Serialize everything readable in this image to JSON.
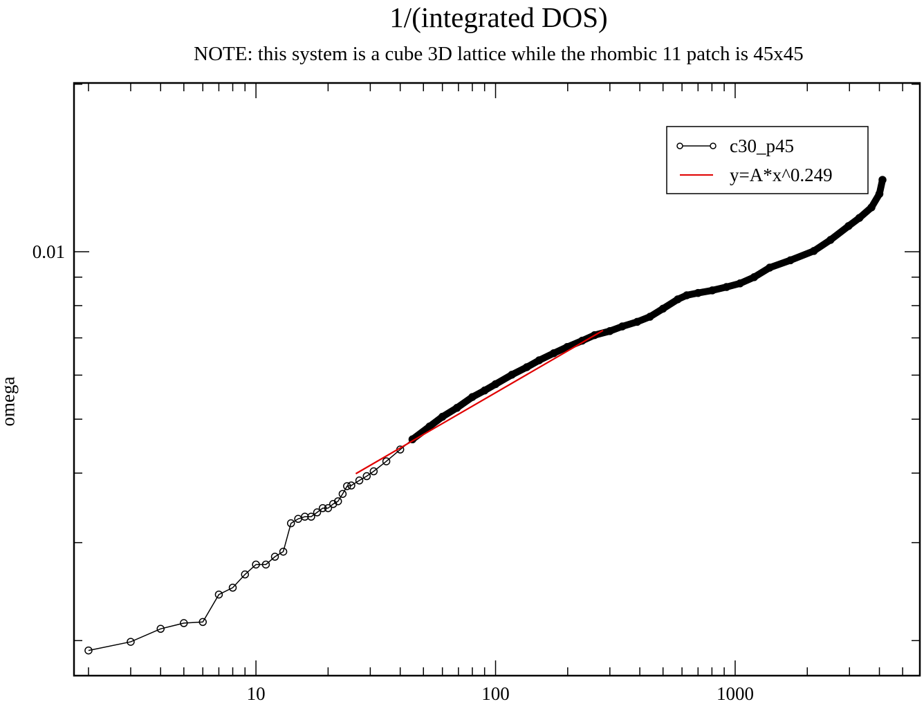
{
  "chart_data": {
    "type": "line",
    "title": "1/(integrated DOS)",
    "subtitle": "NOTE: this system is a cube 3D lattice while the rhombic 11 patch is 45x45",
    "xlabel": "",
    "ylabel": "omega",
    "xscale": "log",
    "yscale": "log",
    "xlim": [
      1.74,
      5900
    ],
    "ylim": [
      0.00173,
      0.0201
    ],
    "x_ticks": [
      {
        "value": 10,
        "label": "10"
      },
      {
        "value": 100,
        "label": "100"
      },
      {
        "value": 1000,
        "label": "1000"
      }
    ],
    "y_ticks": [
      {
        "value": 0.01,
        "label": "0.01"
      }
    ],
    "grid": false,
    "legend_position": "top-right",
    "series": [
      {
        "name": "c30_p45",
        "color": "#000000",
        "marker": "open-circle",
        "x": [
          2,
          3,
          4,
          5,
          6,
          7,
          8,
          9,
          10,
          11,
          12,
          13,
          14,
          15,
          16,
          17,
          18,
          19,
          20,
          21,
          22,
          23,
          24,
          25,
          27,
          29,
          31,
          35,
          40,
          45,
          53,
          60,
          69,
          80,
          90,
          100,
          117,
          135,
          152,
          175,
          199,
          230,
          259,
          300,
          338,
          390,
          441,
          500,
          576,
          628,
          700,
          803,
          920,
          1048,
          1200,
          1393,
          1700,
          2131,
          2500,
          2973,
          3300,
          3705,
          4000,
          4120
        ],
        "y": [
          0.00192,
          0.00199,
          0.0021,
          0.00215,
          0.00216,
          0.00242,
          0.00249,
          0.00263,
          0.00274,
          0.00274,
          0.00283,
          0.00289,
          0.00325,
          0.00331,
          0.00334,
          0.00334,
          0.0034,
          0.00346,
          0.00346,
          0.00352,
          0.00356,
          0.00367,
          0.00379,
          0.0038,
          0.00388,
          0.00395,
          0.00403,
          0.0042,
          0.00441,
          0.0046,
          0.00485,
          0.00505,
          0.00524,
          0.00548,
          0.00563,
          0.00578,
          0.00601,
          0.0062,
          0.00638,
          0.00657,
          0.00674,
          0.00692,
          0.00708,
          0.0072,
          0.00734,
          0.00748,
          0.00764,
          0.0079,
          0.00821,
          0.00835,
          0.00843,
          0.00852,
          0.00864,
          0.00877,
          0.009,
          0.00936,
          0.00965,
          0.01003,
          0.0105,
          0.01112,
          0.0115,
          0.01201,
          0.0127,
          0.01346
        ]
      },
      {
        "name": "y=A*x^0.249",
        "color": "#e00000",
        "marker": "none",
        "x": [
          26.1,
          281
        ],
        "y": [
          0.00399,
          0.00722
        ]
      }
    ]
  }
}
